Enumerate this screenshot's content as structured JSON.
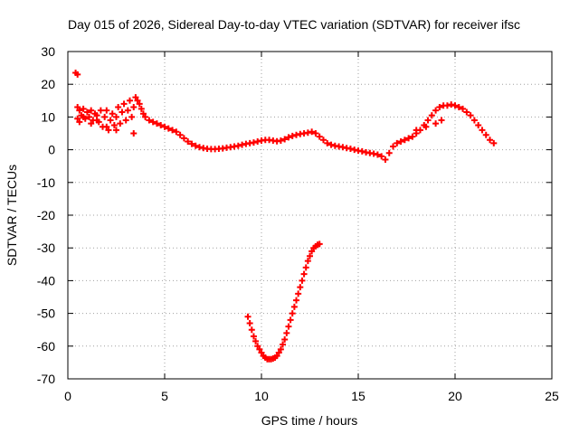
{
  "chart_data": {
    "type": "scatter",
    "title": "Day 015 of 2026, Sidereal Day-to-day VTEC variation (SDTVAR) for receiver ifsc",
    "xlabel": "GPS time / hours",
    "ylabel": "SDTVAR / TECUs",
    "xlim": [
      0,
      25
    ],
    "ylim": [
      -70,
      30
    ],
    "xticks": [
      0,
      5,
      10,
      15,
      20,
      25
    ],
    "yticks": [
      30,
      20,
      10,
      0,
      -10,
      -20,
      -30,
      -40,
      -50,
      -60,
      -70
    ],
    "grid": true,
    "marker": "+",
    "series": [
      {
        "name": "SDTVAR",
        "color": "#ff0000",
        "x": [
          0.4,
          0.5,
          0.5,
          0.6,
          0.7,
          0.8,
          0.9,
          1.0,
          1.1,
          1.2,
          1.3,
          1.4,
          1.5,
          1.6,
          1.7,
          1.8,
          1.9,
          2.0,
          2.1,
          2.2,
          2.3,
          2.4,
          2.5,
          2.6,
          2.7,
          2.8,
          2.9,
          3.0,
          3.1,
          3.2,
          3.3,
          3.4,
          3.5,
          3.6,
          3.7,
          3.8,
          3.9,
          4.0,
          4.2,
          4.4,
          4.6,
          4.8,
          5.0,
          5.2,
          5.4,
          5.6,
          5.8,
          6.0,
          6.2,
          6.4,
          6.6,
          6.8,
          7.0,
          7.2,
          7.4,
          7.6,
          7.8,
          8.0,
          8.2,
          8.4,
          8.6,
          8.8,
          9.0,
          9.2,
          9.4,
          9.6,
          9.8,
          10.0,
          10.2,
          10.4,
          10.6,
          10.8,
          11.0,
          11.2,
          11.4,
          11.6,
          11.8,
          12.0,
          12.2,
          12.4,
          12.6,
          12.8,
          13.0,
          13.2,
          13.4,
          13.6,
          13.8,
          14.0,
          14.2,
          14.4,
          14.6,
          14.8,
          15.0,
          15.2,
          15.4,
          15.6,
          15.8,
          16.0,
          16.2,
          16.4,
          16.6,
          16.8,
          17.0,
          17.2,
          17.4,
          17.6,
          17.8,
          18.0,
          18.2,
          18.4,
          18.6,
          18.8,
          19.0,
          19.2,
          19.4,
          19.6,
          19.8,
          20.0,
          20.2,
          20.4,
          20.6,
          20.8,
          21.0,
          21.2,
          21.4,
          21.6,
          21.8,
          22.0,
          9.3,
          9.4,
          9.5,
          9.6,
          9.7,
          9.8,
          9.9,
          10.0,
          10.1,
          10.2,
          10.3,
          10.4,
          10.5,
          10.6,
          10.7,
          10.8,
          10.9,
          11.0,
          11.1,
          11.2,
          11.3,
          11.4,
          11.5,
          11.6,
          11.7,
          11.8,
          11.9,
          12.0,
          12.1,
          12.2,
          12.3,
          12.4,
          12.5,
          12.6,
          12.7,
          12.8,
          12.9,
          13.0,
          0.5,
          0.6,
          0.8,
          1.2,
          1.5,
          2.0,
          2.5,
          3.4,
          18.0,
          18.5,
          19.0,
          19.3
        ],
        "y": [
          23.5,
          23.0,
          13.0,
          12.0,
          10.5,
          12.5,
          9.5,
          11.5,
          10.0,
          12.0,
          9.0,
          11.0,
          10.5,
          8.5,
          12.0,
          7.0,
          10.0,
          12.0,
          6.0,
          9.0,
          11.0,
          7.5,
          10.0,
          13.0,
          8.0,
          11.5,
          14.0,
          9.0,
          12.0,
          15.0,
          10.0,
          13.0,
          16.0,
          15.0,
          14.0,
          12.5,
          11.0,
          10.0,
          9.0,
          8.5,
          8.0,
          7.5,
          7.0,
          6.5,
          6.0,
          5.5,
          4.5,
          3.5,
          2.5,
          1.8,
          1.2,
          0.8,
          0.5,
          0.3,
          0.2,
          0.2,
          0.3,
          0.4,
          0.6,
          0.8,
          1.0,
          1.2,
          1.5,
          1.8,
          2.0,
          2.2,
          2.5,
          2.8,
          3.0,
          3.0,
          2.8,
          2.6,
          2.8,
          3.2,
          3.8,
          4.2,
          4.5,
          4.8,
          5.0,
          5.2,
          5.5,
          5.0,
          4.0,
          3.0,
          2.0,
          1.5,
          1.2,
          1.0,
          0.8,
          0.5,
          0.3,
          0.0,
          -0.3,
          -0.5,
          -0.8,
          -1.0,
          -1.2,
          -1.5,
          -2.0,
          -3.0,
          -1.0,
          1.0,
          2.0,
          2.5,
          3.0,
          3.5,
          4.0,
          5.0,
          6.0,
          7.5,
          9.0,
          10.5,
          12.0,
          13.0,
          13.5,
          13.5,
          13.8,
          13.5,
          13.0,
          12.5,
          11.5,
          10.5,
          9.0,
          7.5,
          6.0,
          4.5,
          3.0,
          2.0,
          -51.0,
          -53.0,
          -55.0,
          -57.0,
          -58.5,
          -60.0,
          -61.0,
          -62.0,
          -63.0,
          -63.5,
          -64.0,
          -64.0,
          -64.0,
          -63.8,
          -63.5,
          -63.0,
          -62.0,
          -61.0,
          -59.5,
          -58.0,
          -56.0,
          -54.0,
          -52.0,
          -50.0,
          -48.0,
          -46.0,
          -44.0,
          -42.0,
          -40.0,
          -38.0,
          -36.0,
          -34.0,
          -32.5,
          -31.0,
          -30.0,
          -29.5,
          -29.0,
          -28.8,
          9.5,
          8.5,
          10.0,
          8.0,
          9.0,
          7.0,
          6.0,
          5.0,
          6.0,
          7.0,
          8.0,
          9.0
        ]
      }
    ]
  }
}
